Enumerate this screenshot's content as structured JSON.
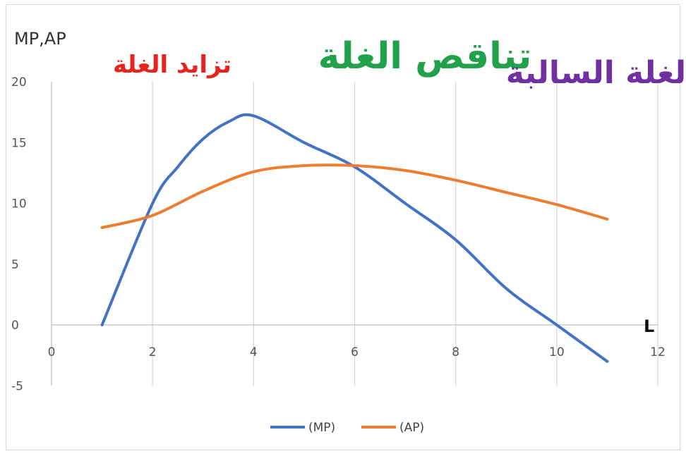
{
  "chart_data": {
    "type": "line",
    "ylabel": "MP,AP",
    "xlabel": "L",
    "xlim": [
      0,
      12
    ],
    "ylim": [
      -5,
      20
    ],
    "xticks": [
      0,
      2,
      4,
      6,
      8,
      10,
      12
    ],
    "yticks": [
      -5,
      0,
      5,
      10,
      15,
      20
    ],
    "grid": "vertical",
    "legend_position": "bottom",
    "series": [
      {
        "name": "(MP)",
        "color": "#4472c4",
        "x": [
          1,
          2,
          2.5,
          3,
          3.5,
          4,
          5,
          6,
          7,
          8,
          9,
          10,
          11
        ],
        "y": [
          0,
          10,
          13,
          15.3,
          16.7,
          17.2,
          15,
          13,
          10,
          7,
          3,
          0,
          -3
        ]
      },
      {
        "name": "(AP)",
        "color": "#ed7d31",
        "x": [
          1,
          2,
          3,
          4,
          5,
          6,
          7,
          8,
          9,
          10,
          11
        ],
        "y": [
          8,
          9,
          11,
          12.6,
          13.1,
          13.1,
          12.7,
          11.9,
          10.9,
          9.9,
          8.7
        ]
      }
    ],
    "annotations": [
      {
        "text": "تزايد الغلة",
        "color": "#e8221d"
      },
      {
        "text": "تناقص الغلة",
        "color": "#21a14b"
      },
      {
        "text": "الغلة السالبة",
        "color": "#7030a0"
      }
    ]
  }
}
